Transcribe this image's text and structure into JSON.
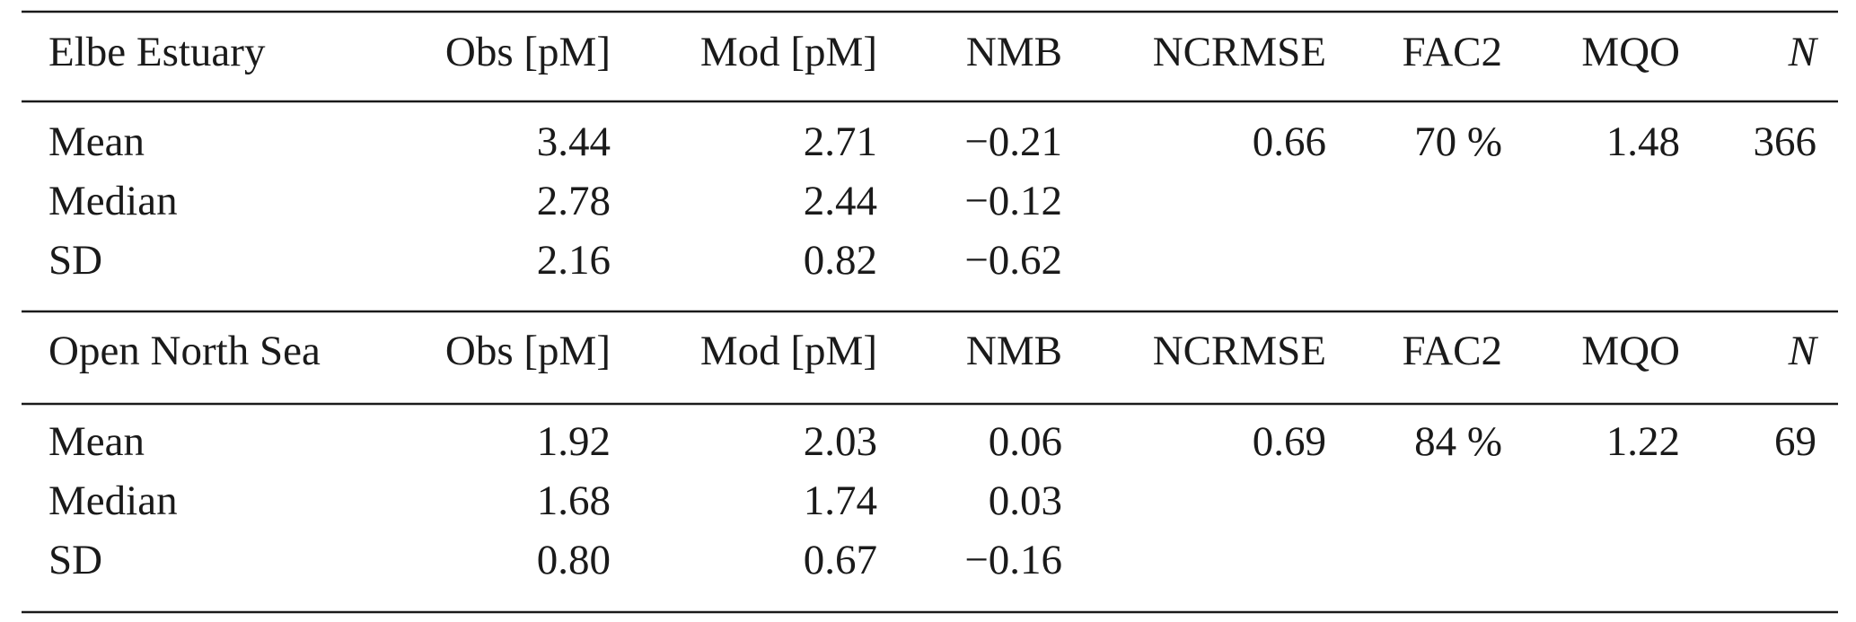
{
  "sections": [
    {
      "header": [
        "Elbe Estuary",
        "Obs [pM]",
        "Mod [pM]",
        "NMB",
        "NCRMSE",
        "FAC2",
        "MQO",
        "N"
      ],
      "rows": [
        [
          "Mean",
          "3.44",
          "2.71",
          "−0.21",
          "0.66",
          "70 %",
          "1.48",
          "366"
        ],
        [
          "Median",
          "2.78",
          "2.44",
          "−0.12"
        ],
        [
          "SD",
          "2.16",
          "0.82",
          "−0.62"
        ]
      ]
    },
    {
      "header": [
        "Open North Sea",
        "Obs [pM]",
        "Mod [pM]",
        "NMB",
        "NCRMSE",
        "FAC2",
        "MQO",
        "N"
      ],
      "rows": [
        [
          "Mean",
          "1.92",
          "2.03",
          "0.06",
          "0.69",
          "84 %",
          "1.22",
          "69"
        ],
        [
          "Median",
          "1.68",
          "1.74",
          "0.03"
        ],
        [
          "SD",
          "0.80",
          "0.67",
          "−0.16"
        ]
      ]
    }
  ]
}
